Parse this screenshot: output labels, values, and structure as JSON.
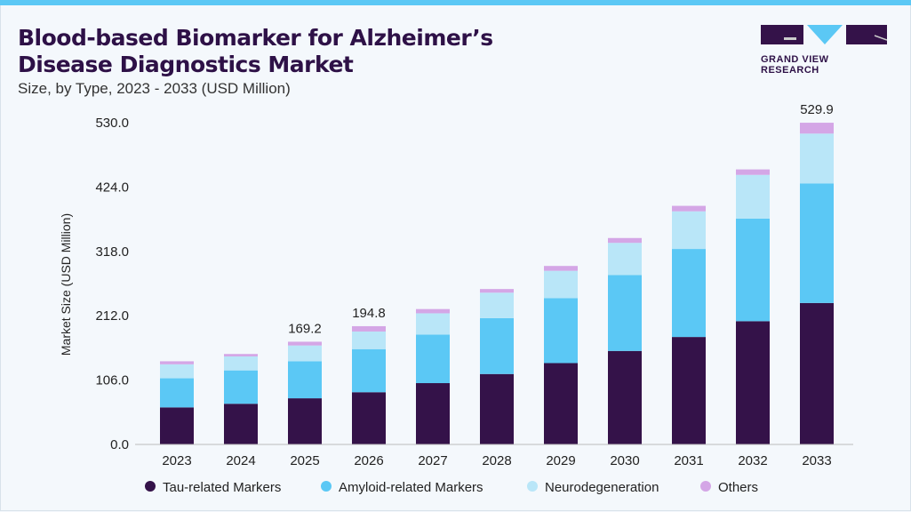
{
  "header": {
    "title_line1": "Blood-based Biomarker for Alzheimer’s",
    "title_line2": "Disease Diagnostics Market",
    "subtitle": "Size, by Type, 2023 - 2033 (USD Million)"
  },
  "logo": {
    "text": "GRAND VIEW RESEARCH"
  },
  "chart_data": {
    "type": "bar",
    "stacked": true,
    "title": "Blood-based Biomarker for Alzheimer’s Disease Diagnostics Market",
    "ylabel": "Market Size (USD Million)",
    "xlabel": "",
    "ylim": [
      0,
      530
    ],
    "yticks": [
      "0.0",
      "106.0",
      "212.0",
      "318.0",
      "424.0",
      "530.0"
    ],
    "categories": [
      "2023",
      "2024",
      "2025",
      "2026",
      "2027",
      "2028",
      "2029",
      "2030",
      "2031",
      "2032",
      "2033"
    ],
    "series": [
      {
        "name": "Tau-related Markers",
        "color": "#341249",
        "values": [
          61,
          67,
          76,
          86,
          101,
          116,
          134,
          154,
          177,
          203,
          233
        ]
      },
      {
        "name": "Amyloid-related Markers",
        "color": "#5bc8f5",
        "values": [
          48,
          55,
          61,
          71,
          80,
          92,
          107,
          125,
          145,
          169,
          197
        ]
      },
      {
        "name": "Neurodegeneration",
        "color": "#b9e6f8",
        "values": [
          23,
          23,
          26,
          29,
          35,
          42,
          45,
          53,
          62,
          72,
          82
        ]
      },
      {
        "name": "Others",
        "color": "#d4a6e6",
        "values": [
          5,
          4,
          6.2,
          8.8,
          7,
          6,
          8,
          8,
          9,
          9,
          17.9
        ]
      }
    ],
    "data_labels": [
      {
        "category": "2025",
        "text": "169.2"
      },
      {
        "category": "2026",
        "text": "194.8"
      },
      {
        "category": "2033",
        "text": "529.9"
      }
    ],
    "grid": false,
    "legend": "bottom"
  }
}
